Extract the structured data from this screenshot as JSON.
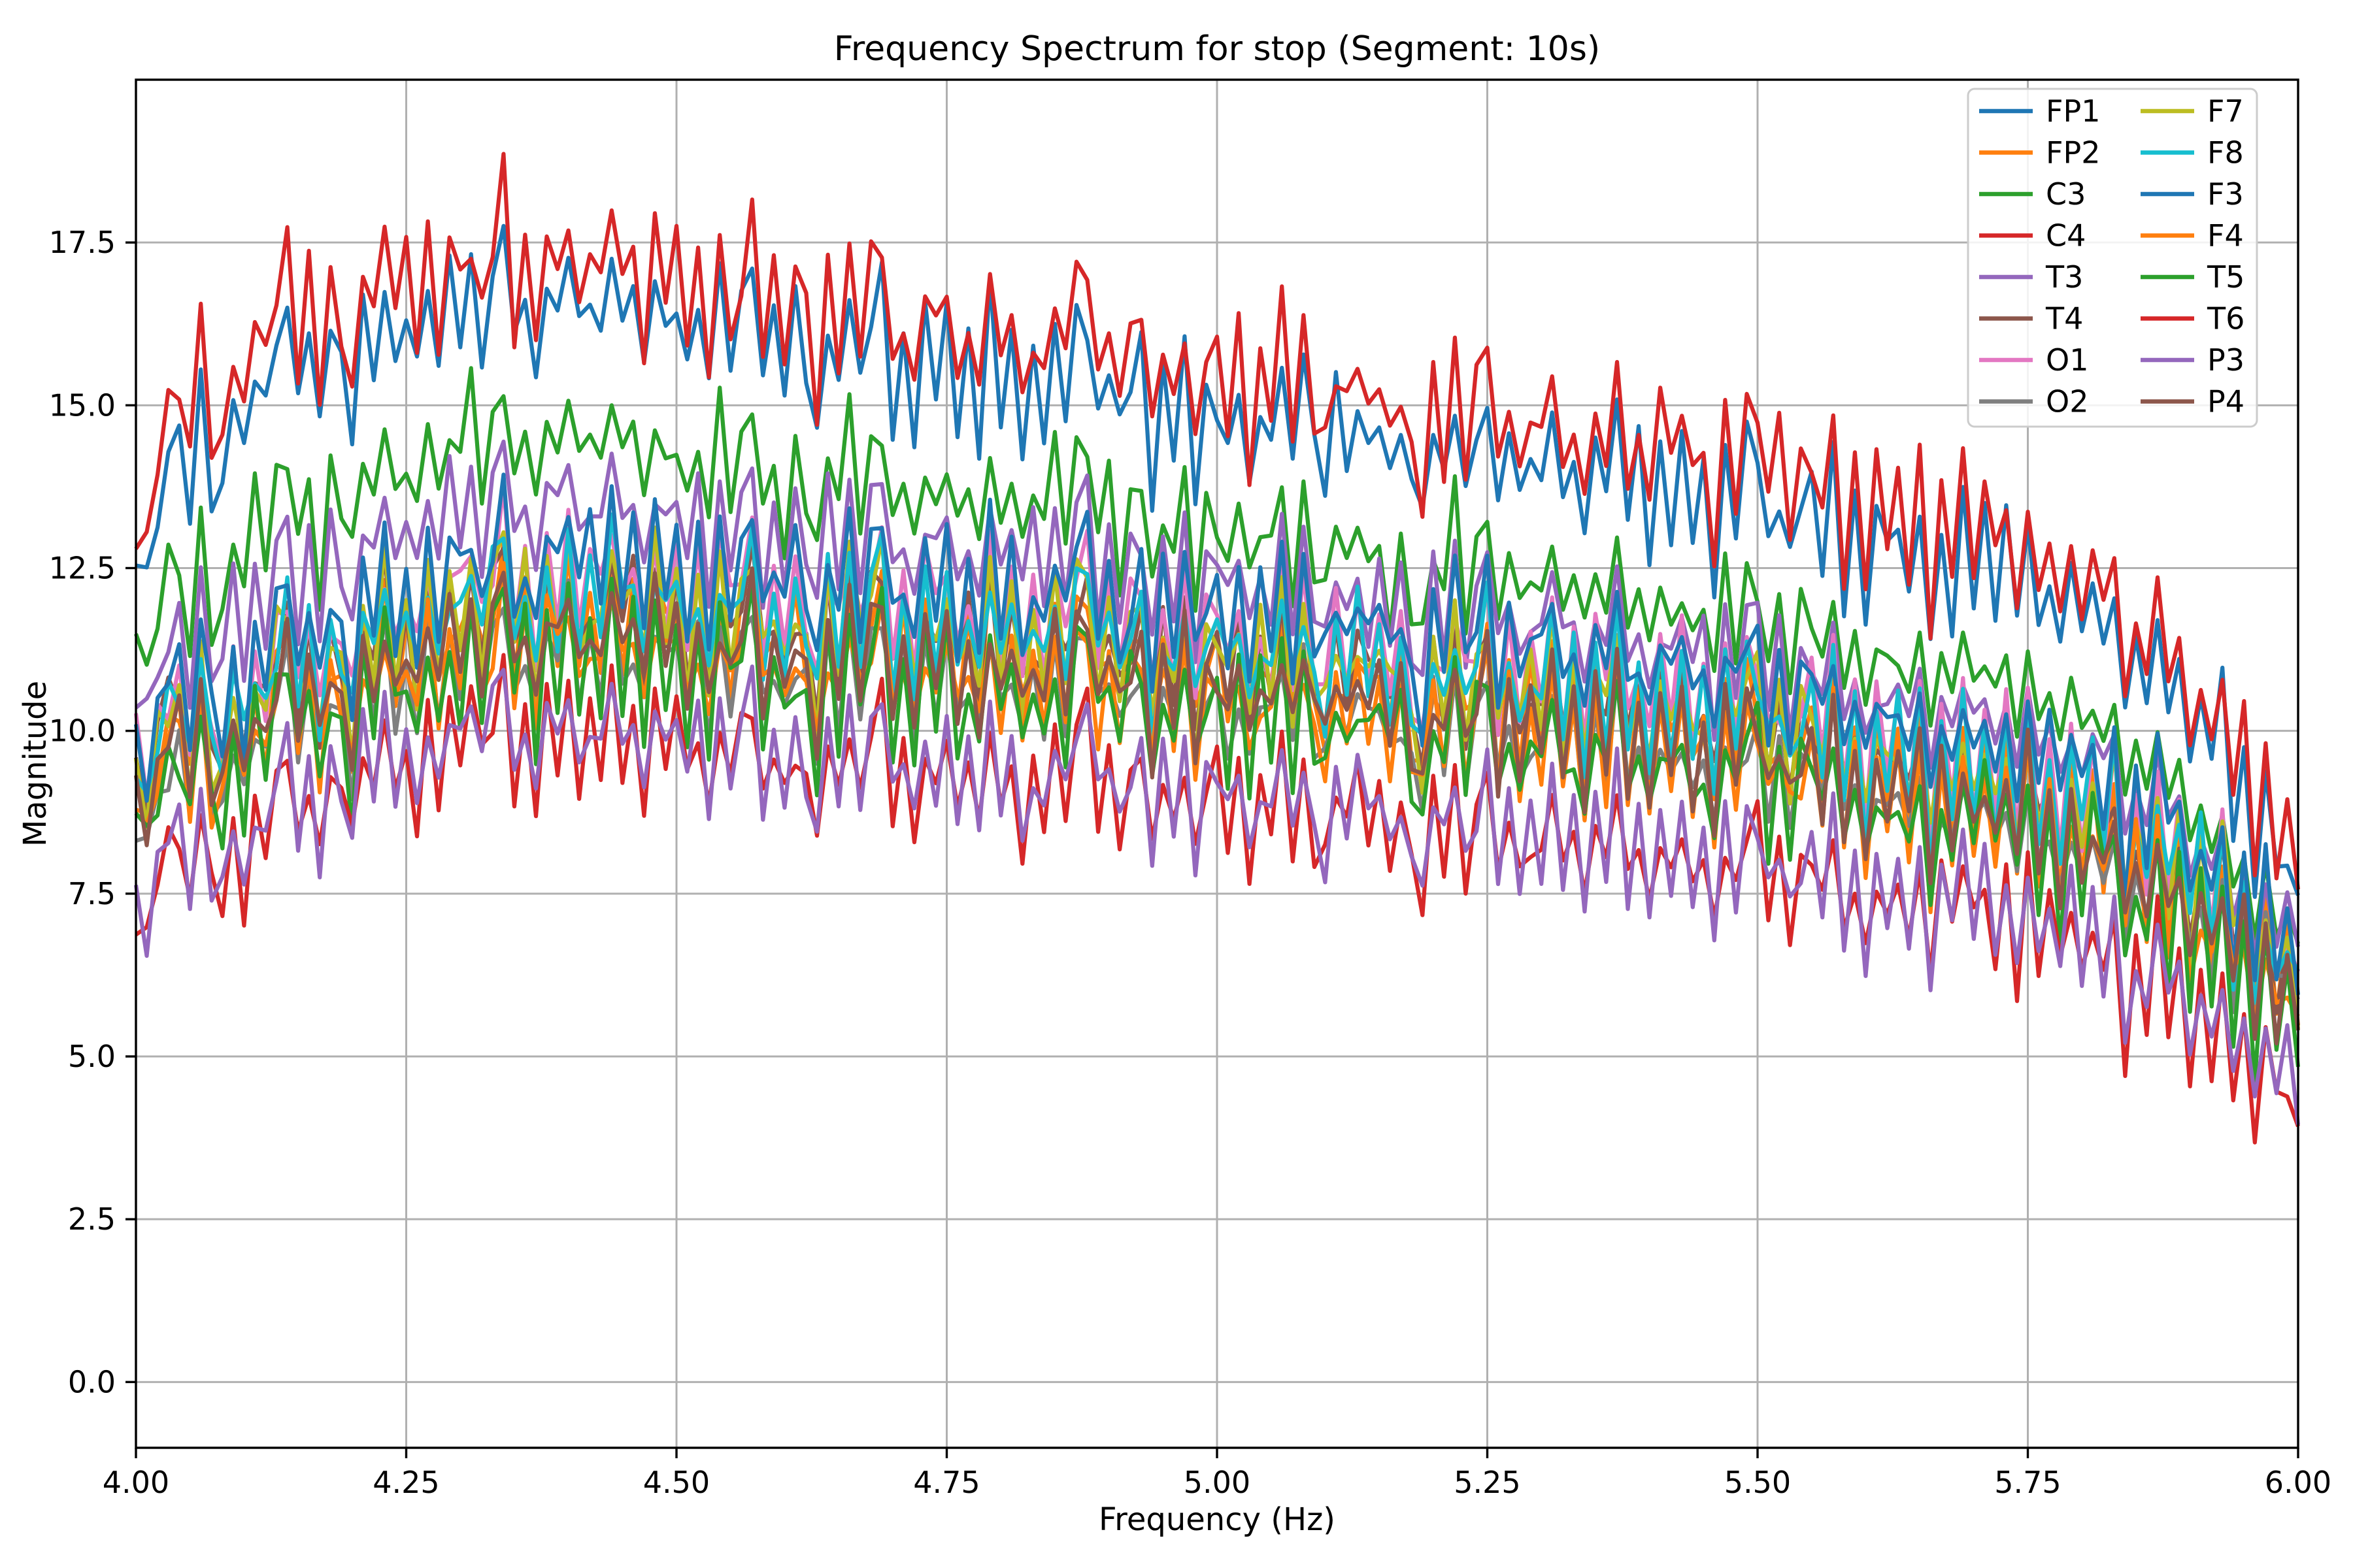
{
  "chart_data": {
    "type": "line",
    "title": "Frequency Spectrum for stop (Segment: 10s)",
    "xlabel": "Frequency (Hz)",
    "ylabel": "Magnitude",
    "xlim": [
      4.0,
      6.0
    ],
    "ylim": [
      -1.01,
      20.0
    ],
    "grid": true,
    "grid_color": "#b0b0b0",
    "spine_color": "#000000",
    "background_color": "#ffffff",
    "x_ticks": [
      4.0,
      4.25,
      4.5,
      4.75,
      5.0,
      5.25,
      5.5,
      5.75,
      6.0
    ],
    "x_tick_labels": [
      "4.00",
      "4.25",
      "4.50",
      "4.75",
      "5.00",
      "5.25",
      "5.50",
      "5.75",
      "6.00"
    ],
    "y_ticks": [
      0.0,
      2.5,
      5.0,
      7.5,
      10.0,
      12.5,
      15.0,
      17.5
    ],
    "y_tick_labels": [
      "0.0",
      "2.5",
      "5.0",
      "7.5",
      "10.0",
      "12.5",
      "15.0",
      "17.5"
    ],
    "legend_position": "upper right",
    "legend_columns": [
      [
        "FP1",
        "FP2",
        "C3",
        "C4",
        "T3",
        "T4",
        "O1",
        "O2"
      ],
      [
        "F7",
        "F8",
        "F3",
        "F4",
        "T5",
        "T6",
        "P3",
        "P4"
      ]
    ],
    "x_start": 4.0,
    "x_step": 0.01,
    "n_points": 201,
    "envelope_x_step": 0.1,
    "noise_profile": [
      0.1,
      -0.45,
      0.3,
      0.6,
      0.7,
      -0.3,
      0.9,
      -0.4,
      -0.6,
      0.3,
      -0.7,
      0.35,
      -0.25,
      0.55,
      1.0,
      -0.35,
      0.45,
      -0.8,
      0.3,
      -0.2,
      -1.0,
      0.4,
      -0.3,
      0.8,
      -0.45,
      0.2,
      -0.6,
      0.5,
      -0.6,
      0.35,
      -0.15,
      0.5,
      -0.4,
      0.3,
      1.0,
      -0.55,
      0.25,
      -0.9,
      0.45,
      -0.25,
      0.6,
      -0.5,
      0.2,
      -0.35,
      0.8,
      -0.25,
      0.4,
      -0.7,
      0.55,
      -0.15,
      0.4,
      -0.6,
      0.25,
      -0.8,
      0.5,
      -0.3,
      0.35,
      0.9,
      -0.5,
      0.2,
      -0.5,
      0.3,
      -0.2,
      -1.0,
      0.45,
      -0.4,
      0.7,
      -0.3,
      0.55,
      0.9,
      -0.45,
      0.25,
      -0.7,
      0.5,
      -0.2,
      0.6,
      -0.55,
      0.3,
      -0.65,
      0.8,
      -0.35,
      0.45,
      -0.6,
      0.25,
      -0.45,
      0.5,
      -0.25,
      0.7,
      0.9,
      -0.3,
      0.4,
      -0.5,
      0.2,
      0.55,
      -0.9,
      0.35,
      -0.4,
      0.6,
      -0.75,
      0.25,
      0.3,
      -0.4,
      0.5,
      -0.7,
      0.25,
      -0.2,
      0.8,
      -0.45,
      0.6,
      -0.3,
      -0.6,
      0.35,
      -0.25,
      0.5,
      -0.15,
      0.4,
      -0.4,
      0.2,
      -0.55,
      -1.0,
      0.3,
      -0.35,
      0.7,
      -0.45,
      0.25,
      0.9,
      -0.6,
      0.4,
      -0.6,
      0.2,
      -0.25,
      0.8,
      -0.5,
      0.3,
      -0.8,
      0.45,
      -0.35,
      1.0,
      -0.55,
      0.25,
      -0.7,
      0.4,
      -0.3,
      0.5,
      -0.45,
      0.2,
      -0.9,
      0.55,
      -0.25,
      0.65,
      0.6,
      -0.4,
      0.3,
      -0.5,
      0.2,
      0.45,
      -0.3,
      0.9,
      -0.6,
      0.35,
      -0.8,
      0.3,
      -0.25,
      0.4,
      -0.5,
      0.6,
      -1.0,
      0.35,
      -0.45,
      0.7,
      -0.3,
      0.5,
      -0.4,
      0.6,
      -0.7,
      0.8,
      -0.5,
      0.3,
      -0.7,
      0.45,
      -0.55,
      0.5,
      -0.35,
      0.6,
      -1.0,
      0.3,
      -0.6,
      0.8,
      -0.4,
      0.55,
      -0.8,
      0.35,
      -0.5,
      0.6,
      -0.7,
      0.25,
      -0.9,
      0.4,
      -0.6,
      0.1,
      -0.5
    ],
    "series": [
      {
        "name": "FP1",
        "color": "#1f77b4",
        "shared_amp": 1.4,
        "own_amp": 0.5,
        "phase": 96,
        "envelope": [
          12.6,
          15.0,
          16.0,
          16.4,
          16.6,
          16.3,
          16.0,
          15.6,
          15.4,
          15.2,
          14.8,
          14.6,
          14.3,
          14.1,
          13.8,
          13.4,
          12.9,
          12.5,
          12.0,
          10.4,
          8.0
        ]
      },
      {
        "name": "FP2",
        "color": "#ff7f0e",
        "shared_amp": 1.2,
        "own_amp": 0.55,
        "phase": 8,
        "envelope": [
          9.0,
          10.1,
          10.9,
          11.5,
          11.7,
          11.5,
          11.3,
          11.2,
          11.1,
          11.0,
          10.8,
          10.7,
          10.5,
          10.3,
          10.1,
          9.8,
          9.4,
          9.0,
          8.6,
          7.5,
          6.3
        ]
      },
      {
        "name": "C3",
        "color": "#2ca02c",
        "shared_amp": 1.3,
        "own_amp": 0.6,
        "phase": 3,
        "envelope": [
          11.0,
          12.8,
          13.8,
          14.3,
          14.5,
          14.2,
          13.9,
          13.6,
          13.5,
          13.3,
          13.0,
          12.8,
          12.5,
          12.3,
          12.0,
          11.5,
          11.2,
          10.8,
          10.4,
          9.0,
          7.2
        ]
      },
      {
        "name": "C4",
        "color": "#d62728",
        "shared_amp": 1.45,
        "own_amp": 0.55,
        "phase": 63,
        "envelope": [
          13.2,
          15.8,
          16.6,
          17.0,
          17.2,
          16.9,
          16.6,
          16.2,
          16.0,
          15.8,
          15.4,
          15.2,
          14.9,
          14.7,
          14.4,
          14.0,
          13.5,
          13.0,
          12.4,
          10.8,
          8.4
        ]
      },
      {
        "name": "T3",
        "color": "#9467bd",
        "shared_amp": 1.2,
        "own_amp": 0.55,
        "phase": 5,
        "envelope": [
          10.4,
          11.8,
          12.8,
          13.3,
          13.5,
          13.2,
          13.0,
          12.8,
          12.7,
          12.5,
          12.3,
          12.1,
          11.9,
          11.7,
          11.4,
          11.0,
          10.6,
          10.2,
          9.8,
          8.6,
          6.9
        ]
      },
      {
        "name": "T4",
        "color": "#8c564b",
        "shared_amp": 1.15,
        "own_amp": 0.5,
        "phase": 11,
        "envelope": [
          9.3,
          10.4,
          11.2,
          11.7,
          11.9,
          11.7,
          11.5,
          11.4,
          11.3,
          11.2,
          11.0,
          10.9,
          10.7,
          10.5,
          10.3,
          10.0,
          9.6,
          9.2,
          8.8,
          7.7,
          6.4
        ]
      },
      {
        "name": "O1",
        "color": "#e377c2",
        "shared_amp": 1.2,
        "own_amp": 0.55,
        "phase": 14,
        "envelope": [
          9.6,
          10.6,
          11.5,
          12.2,
          12.4,
          12.2,
          12.0,
          11.9,
          11.8,
          11.7,
          11.5,
          11.3,
          11.1,
          11.0,
          10.8,
          10.4,
          10.0,
          9.6,
          9.2,
          8.0,
          6.6
        ]
      },
      {
        "name": "O2",
        "color": "#7f7f7f",
        "shared_amp": 1.1,
        "own_amp": 0.5,
        "phase": 17,
        "envelope": [
          8.6,
          9.7,
          10.5,
          11.0,
          11.2,
          11.0,
          10.8,
          10.7,
          10.6,
          10.5,
          10.3,
          10.2,
          10.0,
          9.8,
          9.6,
          9.3,
          9.0,
          8.6,
          8.2,
          7.2,
          6.2
        ]
      },
      {
        "name": "F7",
        "color": "#bcbd22",
        "shared_amp": 1.35,
        "own_amp": 0.6,
        "phase": 21,
        "envelope": [
          9.2,
          10.3,
          11.2,
          11.8,
          12.0,
          11.8,
          11.6,
          11.5,
          11.4,
          11.3,
          11.1,
          11.0,
          10.8,
          10.6,
          10.4,
          10.1,
          9.7,
          9.3,
          8.9,
          7.8,
          6.7
        ]
      },
      {
        "name": "F8",
        "color": "#17becf",
        "shared_amp": 1.25,
        "own_amp": 0.55,
        "phase": 24,
        "envelope": [
          9.4,
          10.5,
          11.4,
          11.9,
          12.1,
          11.9,
          11.7,
          11.6,
          11.5,
          11.4,
          11.2,
          11.1,
          10.9,
          10.7,
          10.5,
          10.2,
          9.8,
          9.4,
          9.0,
          7.9,
          6.5
        ]
      },
      {
        "name": "F3",
        "color": "#1f77b4",
        "shared_amp": 1.25,
        "own_amp": 0.55,
        "phase": 27,
        "envelope": [
          9.7,
          10.9,
          11.8,
          12.4,
          12.7,
          12.5,
          12.3,
          12.2,
          12.1,
          12.0,
          11.8,
          11.7,
          11.5,
          11.3,
          11.1,
          10.7,
          10.3,
          9.9,
          9.5,
          8.3,
          6.9
        ]
      },
      {
        "name": "F4",
        "color": "#ff7f0e",
        "shared_amp": 1.15,
        "own_amp": 0.55,
        "phase": 30,
        "envelope": [
          8.7,
          9.8,
          10.6,
          11.1,
          11.3,
          11.1,
          10.9,
          10.8,
          10.7,
          10.6,
          10.4,
          10.3,
          10.1,
          9.9,
          9.7,
          9.4,
          9.1,
          8.7,
          8.3,
          7.2,
          6.0
        ]
      },
      {
        "name": "T5",
        "color": "#2ca02c",
        "shared_amp": 1.4,
        "own_amp": 0.65,
        "phase": 33,
        "envelope": [
          8.4,
          9.6,
          10.4,
          10.9,
          11.1,
          10.9,
          10.7,
          10.6,
          10.5,
          10.4,
          10.2,
          10.1,
          9.9,
          9.7,
          9.5,
          9.2,
          8.9,
          8.5,
          8.1,
          7.0,
          5.8
        ]
      },
      {
        "name": "T6",
        "color": "#d62728",
        "shared_amp": 1.2,
        "own_amp": 0.5,
        "phase": 37,
        "envelope": [
          7.2,
          8.2,
          9.3,
          9.8,
          9.9,
          9.7,
          9.5,
          9.3,
          9.2,
          9.1,
          8.9,
          8.7,
          8.5,
          8.3,
          8.1,
          7.8,
          7.5,
          7.2,
          6.8,
          5.8,
          4.4
        ]
      },
      {
        "name": "P3",
        "color": "#9467bd",
        "shared_amp": 1.2,
        "own_amp": 0.45,
        "phase": 36,
        "envelope": [
          7.4,
          8.3,
          9.4,
          9.9,
          10.0,
          9.8,
          9.6,
          9.4,
          9.3,
          9.2,
          9.0,
          8.8,
          8.6,
          8.4,
          8.2,
          7.9,
          7.6,
          7.3,
          6.9,
          5.9,
          4.8
        ]
      },
      {
        "name": "P4",
        "color": "#8c564b",
        "shared_amp": 1.15,
        "own_amp": 0.5,
        "phase": 40,
        "envelope": [
          8.9,
          10.0,
          10.8,
          11.3,
          11.5,
          11.3,
          11.1,
          11.0,
          10.9,
          10.8,
          10.6,
          10.5,
          10.3,
          10.1,
          9.9,
          9.6,
          9.2,
          8.8,
          8.4,
          7.3,
          6.1
        ]
      }
    ]
  }
}
